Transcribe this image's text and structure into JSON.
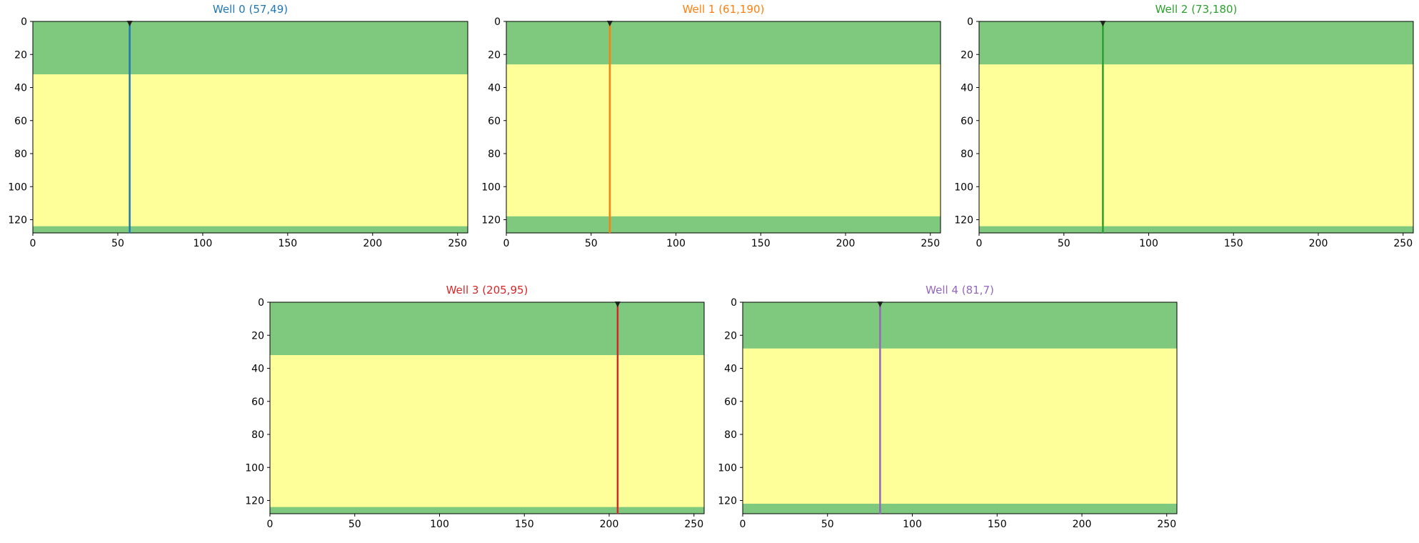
{
  "chart_data": [
    {
      "type": "heatmap",
      "title": "Well 0 (57,49)",
      "well_color": "#1f77b4",
      "well_x": 57,
      "xlim": [
        0,
        256
      ],
      "ylim": [
        128,
        0
      ],
      "xticks": [
        "0",
        "50",
        "100",
        "150",
        "200",
        "250"
      ],
      "yticks": [
        "0",
        "20",
        "40",
        "60",
        "80",
        "100",
        "120"
      ],
      "layers": [
        {
          "top": 0,
          "bottom": 32,
          "fill": "#7fc97f"
        },
        {
          "top": 32,
          "bottom": 124,
          "fill": "#ffff99"
        },
        {
          "top": 124,
          "bottom": 128,
          "fill": "#7fc97f"
        }
      ]
    },
    {
      "type": "heatmap",
      "title": "Well 1 (61,190)",
      "well_color": "#ff7f0e",
      "well_x": 61,
      "xlim": [
        0,
        256
      ],
      "ylim": [
        128,
        0
      ],
      "xticks": [
        "0",
        "50",
        "100",
        "150",
        "200",
        "250"
      ],
      "yticks": [
        "0",
        "20",
        "40",
        "60",
        "80",
        "100",
        "120"
      ],
      "layers": [
        {
          "top": 0,
          "bottom": 26,
          "fill": "#7fc97f"
        },
        {
          "top": 26,
          "bottom": 118,
          "fill": "#ffff99"
        },
        {
          "top": 118,
          "bottom": 128,
          "fill": "#7fc97f"
        }
      ]
    },
    {
      "type": "heatmap",
      "title": "Well 2 (73,180)",
      "well_color": "#2ca02c",
      "well_x": 73,
      "xlim": [
        0,
        256
      ],
      "ylim": [
        128,
        0
      ],
      "xticks": [
        "0",
        "50",
        "100",
        "150",
        "200",
        "250"
      ],
      "yticks": [
        "0",
        "20",
        "40",
        "60",
        "80",
        "100",
        "120"
      ],
      "layers": [
        {
          "top": 0,
          "bottom": 26,
          "fill": "#7fc97f"
        },
        {
          "top": 26,
          "bottom": 124,
          "fill": "#ffff99"
        },
        {
          "top": 124,
          "bottom": 128,
          "fill": "#7fc97f"
        }
      ]
    },
    {
      "type": "heatmap",
      "title": "Well 3 (205,95)",
      "well_color": "#d62728",
      "well_x": 205,
      "xlim": [
        0,
        256
      ],
      "ylim": [
        128,
        0
      ],
      "xticks": [
        "0",
        "50",
        "100",
        "150",
        "200",
        "250"
      ],
      "yticks": [
        "0",
        "20",
        "40",
        "60",
        "80",
        "100",
        "120"
      ],
      "layers": [
        {
          "top": 0,
          "bottom": 32,
          "fill": "#7fc97f"
        },
        {
          "top": 32,
          "bottom": 124,
          "fill": "#ffff99"
        },
        {
          "top": 124,
          "bottom": 128,
          "fill": "#7fc97f"
        }
      ]
    },
    {
      "type": "heatmap",
      "title": "Well 4 (81,7)",
      "well_color": "#9467bd",
      "well_x": 81,
      "xlim": [
        0,
        256
      ],
      "ylim": [
        128,
        0
      ],
      "xticks": [
        "0",
        "50",
        "100",
        "150",
        "200",
        "250"
      ],
      "yticks": [
        "0",
        "20",
        "40",
        "60",
        "80",
        "100",
        "120"
      ],
      "layers": [
        {
          "top": 0,
          "bottom": 28,
          "fill": "#7fc97f"
        },
        {
          "top": 28,
          "bottom": 122,
          "fill": "#ffff99"
        },
        {
          "top": 122,
          "bottom": 128,
          "fill": "#7fc97f"
        }
      ]
    }
  ],
  "facies_colors": {
    "background": "#7fc97f",
    "sand": "#ffff99",
    "channel": "#beaed4",
    "levee": "#fdc086",
    "shale": "#666666",
    "crevasse": "#bf5b17",
    "thin": "#f0027f"
  }
}
